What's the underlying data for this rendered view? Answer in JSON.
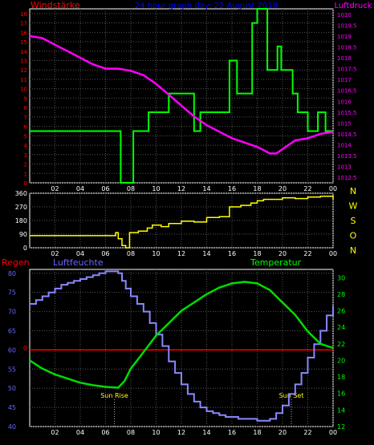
{
  "chart_data": [
    {
      "type": "line",
      "title": "24 hour graph day: 22 August 2018",
      "left_label": "Windstärke",
      "right_label": "Luftdruck",
      "x_ticks": [
        "02",
        "04",
        "06",
        "08",
        "10",
        "12",
        "14",
        "16",
        "18",
        "20",
        "22",
        "00"
      ],
      "y_left_ticks": [
        "0",
        "1",
        "2",
        "3",
        "4",
        "5",
        "6",
        "7",
        "8",
        "9",
        "10",
        "11",
        "12",
        "13",
        "14",
        "15",
        "16",
        "17",
        "18"
      ],
      "y_left_lim": [
        0,
        18.5
      ],
      "y_right_ticks": [
        "1012.5",
        "1013",
        "1013.5",
        "1014",
        "1014.5",
        "1015",
        "1015.5",
        "1016",
        "1016.5",
        "1017",
        "1017.5",
        "1018",
        "1018.5",
        "1019",
        "1019.5",
        "1020"
      ],
      "y_right_lim": [
        1012.25,
        1020.25
      ],
      "colors": {
        "wind": "#00ff00",
        "pressure": "#ff00ff",
        "title": "#0000ff",
        "left_axis": "#ff0000",
        "right_axis": "#ff00ff",
        "ticks": "#ffffff",
        "grid": "#666666"
      },
      "series": [
        {
          "axis": "left",
          "step": true,
          "x": [
            0,
            7.2,
            8.2,
            9.4,
            11.0,
            13.0,
            13.5,
            14.0,
            15.8,
            16.4,
            17.6,
            18.0,
            18.8,
            19.6,
            19.9,
            20.8,
            21.2,
            22.0,
            22.8,
            23.4,
            24
          ],
          "values": [
            5.5,
            0,
            5.5,
            7.5,
            9.5,
            5.5,
            7.5,
            7.5,
            13,
            9.5,
            17,
            18.5,
            12,
            14.5,
            12,
            9.5,
            7.5,
            5.5,
            7.5,
            5.5,
            5.5
          ]
        },
        {
          "axis": "right",
          "step": false,
          "x": [
            0,
            1,
            2,
            3,
            4,
            5,
            6,
            7,
            8,
            9,
            10,
            11,
            12,
            13,
            14,
            15,
            16,
            17,
            18,
            19,
            19.5,
            20,
            21,
            22,
            23,
            24
          ],
          "values": [
            1019.0,
            1018.9,
            1018.6,
            1018.3,
            1018.0,
            1017.7,
            1017.5,
            1017.5,
            1017.4,
            1017.2,
            1016.8,
            1016.3,
            1015.8,
            1015.3,
            1014.9,
            1014.6,
            1014.3,
            1014.1,
            1013.9,
            1013.6,
            1013.6,
            1013.8,
            1014.2,
            1014.3,
            1014.5,
            1014.6
          ]
        }
      ]
    },
    {
      "type": "line",
      "title": "",
      "x_ticks": [
        "02",
        "04",
        "06",
        "08",
        "10",
        "12",
        "14",
        "16",
        "18",
        "20",
        "22",
        "00"
      ],
      "y_left_ticks": [
        "0",
        "90",
        "180",
        "270",
        "360"
      ],
      "y_left_lim": [
        0,
        360
      ],
      "y_right_labels": [
        "N",
        "W",
        "S",
        "O",
        "N"
      ],
      "colors": {
        "direction": "#ffff00",
        "ticks": "#ffffff",
        "right_labels": "#ffff00"
      },
      "series": [
        {
          "step": true,
          "x": [
            0,
            6.8,
            7.0,
            7.3,
            7.6,
            7.9,
            8.6,
            9.3,
            9.7,
            10.4,
            11.0,
            12.0,
            13.0,
            14.0,
            15.0,
            15.8,
            16.7,
            17.5,
            18.0,
            18.5,
            19.0,
            20.0,
            21.0,
            22.0,
            23.0,
            24
          ],
          "values": [
            80,
            100,
            60,
            15,
            0,
            100,
            110,
            130,
            150,
            140,
            160,
            175,
            170,
            200,
            205,
            270,
            280,
            295,
            310,
            320,
            320,
            330,
            325,
            335,
            340,
            320
          ]
        }
      ]
    },
    {
      "type": "line",
      "title": "",
      "labels": {
        "rain": "Regen",
        "humidity": "Luftfeuchte",
        "temperature": "Temperatur",
        "rain_tick": "0"
      },
      "x_ticks": [
        "02",
        "04",
        "06",
        "08",
        "10",
        "12",
        "14",
        "16",
        "18",
        "20",
        "22",
        "00"
      ],
      "y_left_ticks": [
        "40",
        "45",
        "50",
        "55",
        "60",
        "65",
        "70",
        "75",
        "80"
      ],
      "y_left_lim": [
        40,
        81
      ],
      "y_right_ticks": [
        "12",
        "14",
        "16",
        "18",
        "20",
        "22",
        "24",
        "26",
        "28",
        "30"
      ],
      "y_right_lim": [
        12,
        31
      ],
      "annotations": [
        {
          "label": "Sun Rise",
          "x": 6.7
        },
        {
          "label": "Sun Set",
          "x": 20.7
        }
      ],
      "colors": {
        "humidity": "#8888ff",
        "temperature": "#00dd00",
        "rain": "#ff0000",
        "left_axis": "#6666ff",
        "right_axis": "#00ff00",
        "ticks": "#ffffff"
      },
      "series": [
        {
          "name": "Luftfeuchte",
          "axis": "left",
          "step": true,
          "x": [
            0,
            0.5,
            1,
            1.5,
            2,
            2.5,
            3,
            3.5,
            4,
            4.5,
            5,
            5.5,
            6,
            6.5,
            7,
            7.3,
            7.6,
            8,
            8.5,
            9,
            9.5,
            10,
            10.5,
            11,
            11.5,
            12,
            12.5,
            13,
            13.5,
            14,
            14.5,
            15,
            15.5,
            16,
            16.5,
            17,
            17.5,
            18,
            18.5,
            19,
            19.5,
            20,
            20.5,
            21,
            21.5,
            22,
            22.5,
            23,
            23.5,
            24
          ],
          "values": [
            72,
            73,
            74,
            75,
            76,
            77,
            77.5,
            78,
            78.5,
            79,
            79.5,
            80,
            80.5,
            80.5,
            80,
            78,
            76,
            74,
            72,
            70,
            67,
            64,
            61,
            57,
            54,
            51,
            48.5,
            46.5,
            45,
            44,
            43.5,
            43,
            42.5,
            42.5,
            42,
            42,
            42,
            41.5,
            41.5,
            42,
            43.5,
            45.5,
            48.5,
            51,
            54,
            58,
            61.5,
            65,
            69,
            71.5
          ]
        },
        {
          "name": "Temperatur",
          "axis": "right",
          "step": false,
          "x": [
            0,
            1,
            2,
            3,
            4,
            5,
            6,
            7,
            7.5,
            8,
            9,
            10,
            11,
            12,
            13,
            14,
            15,
            16,
            17,
            18,
            19,
            20,
            21,
            22,
            23,
            24
          ],
          "values": [
            20,
            19,
            18.3,
            17.8,
            17.3,
            17,
            16.8,
            16.7,
            17.5,
            19,
            21,
            23,
            24.5,
            26,
            27,
            28,
            28.8,
            29.3,
            29.5,
            29.3,
            28.5,
            27,
            25.5,
            23.5,
            22,
            21.5
          ]
        },
        {
          "name": "Regen",
          "axis": "left",
          "step": false,
          "x": [
            0,
            24
          ],
          "values": [
            60,
            60
          ]
        }
      ]
    }
  ]
}
